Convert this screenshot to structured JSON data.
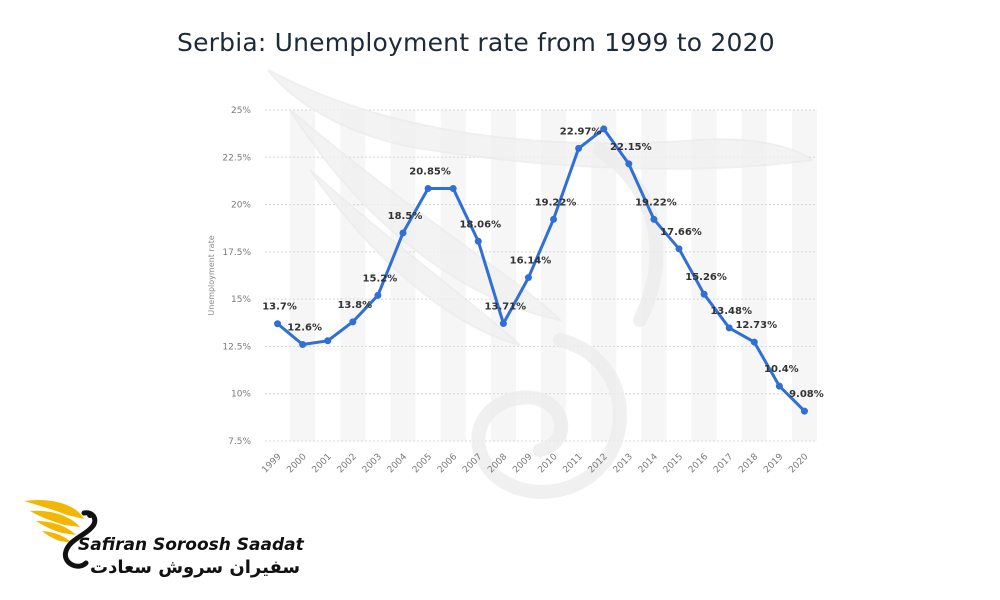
{
  "page": {
    "title": "Serbia: Unemployment rate from 1999 to 2020"
  },
  "brand": {
    "name_en": "Safiran Soroosh Saadat",
    "name_fa": "سفیران سروش سعادت",
    "accent": "#f2b705",
    "dark": "#111111"
  },
  "chart_data": {
    "type": "line",
    "title": "Serbia: Unemployment rate from 1999 to 2020",
    "xlabel": "",
    "ylabel": "Unemployment rate",
    "ylim": [
      7.5,
      25
    ],
    "yticks": [
      7.5,
      10,
      12.5,
      15,
      17.5,
      20,
      22.5,
      25
    ],
    "ytick_labels": [
      "7.5%",
      "10%",
      "12.5%",
      "15%",
      "17.5%",
      "20%",
      "22.5%",
      "25%"
    ],
    "grid": true,
    "line_color": "#2f6fd6",
    "x": [
      "1999",
      "2000",
      "2001",
      "2002",
      "2003",
      "2004",
      "2005",
      "2006",
      "2007",
      "2008",
      "2009",
      "2010",
      "2011",
      "2012",
      "2013",
      "2014",
      "2015",
      "2016",
      "2017",
      "2018",
      "2019",
      "2020"
    ],
    "values": [
      13.7,
      12.6,
      12.8,
      13.8,
      15.2,
      18.5,
      20.85,
      20.85,
      18.06,
      13.71,
      16.14,
      19.22,
      22.97,
      24.0,
      22.15,
      19.22,
      17.66,
      15.26,
      13.48,
      12.73,
      10.4,
      9.08
    ],
    "data_labels": [
      "13.7%",
      "12.6%",
      "",
      "13.8%",
      "15.2%",
      "18.5%",
      "20.85%",
      "",
      "18.06%",
      "13.71%",
      "16.14%",
      "19.22%",
      "22.97%",
      "",
      "22.15%",
      "19.22%",
      "17.66%",
      "15.26%",
      "13.48%",
      "12.73%",
      "10.4%",
      "9.08%"
    ]
  }
}
